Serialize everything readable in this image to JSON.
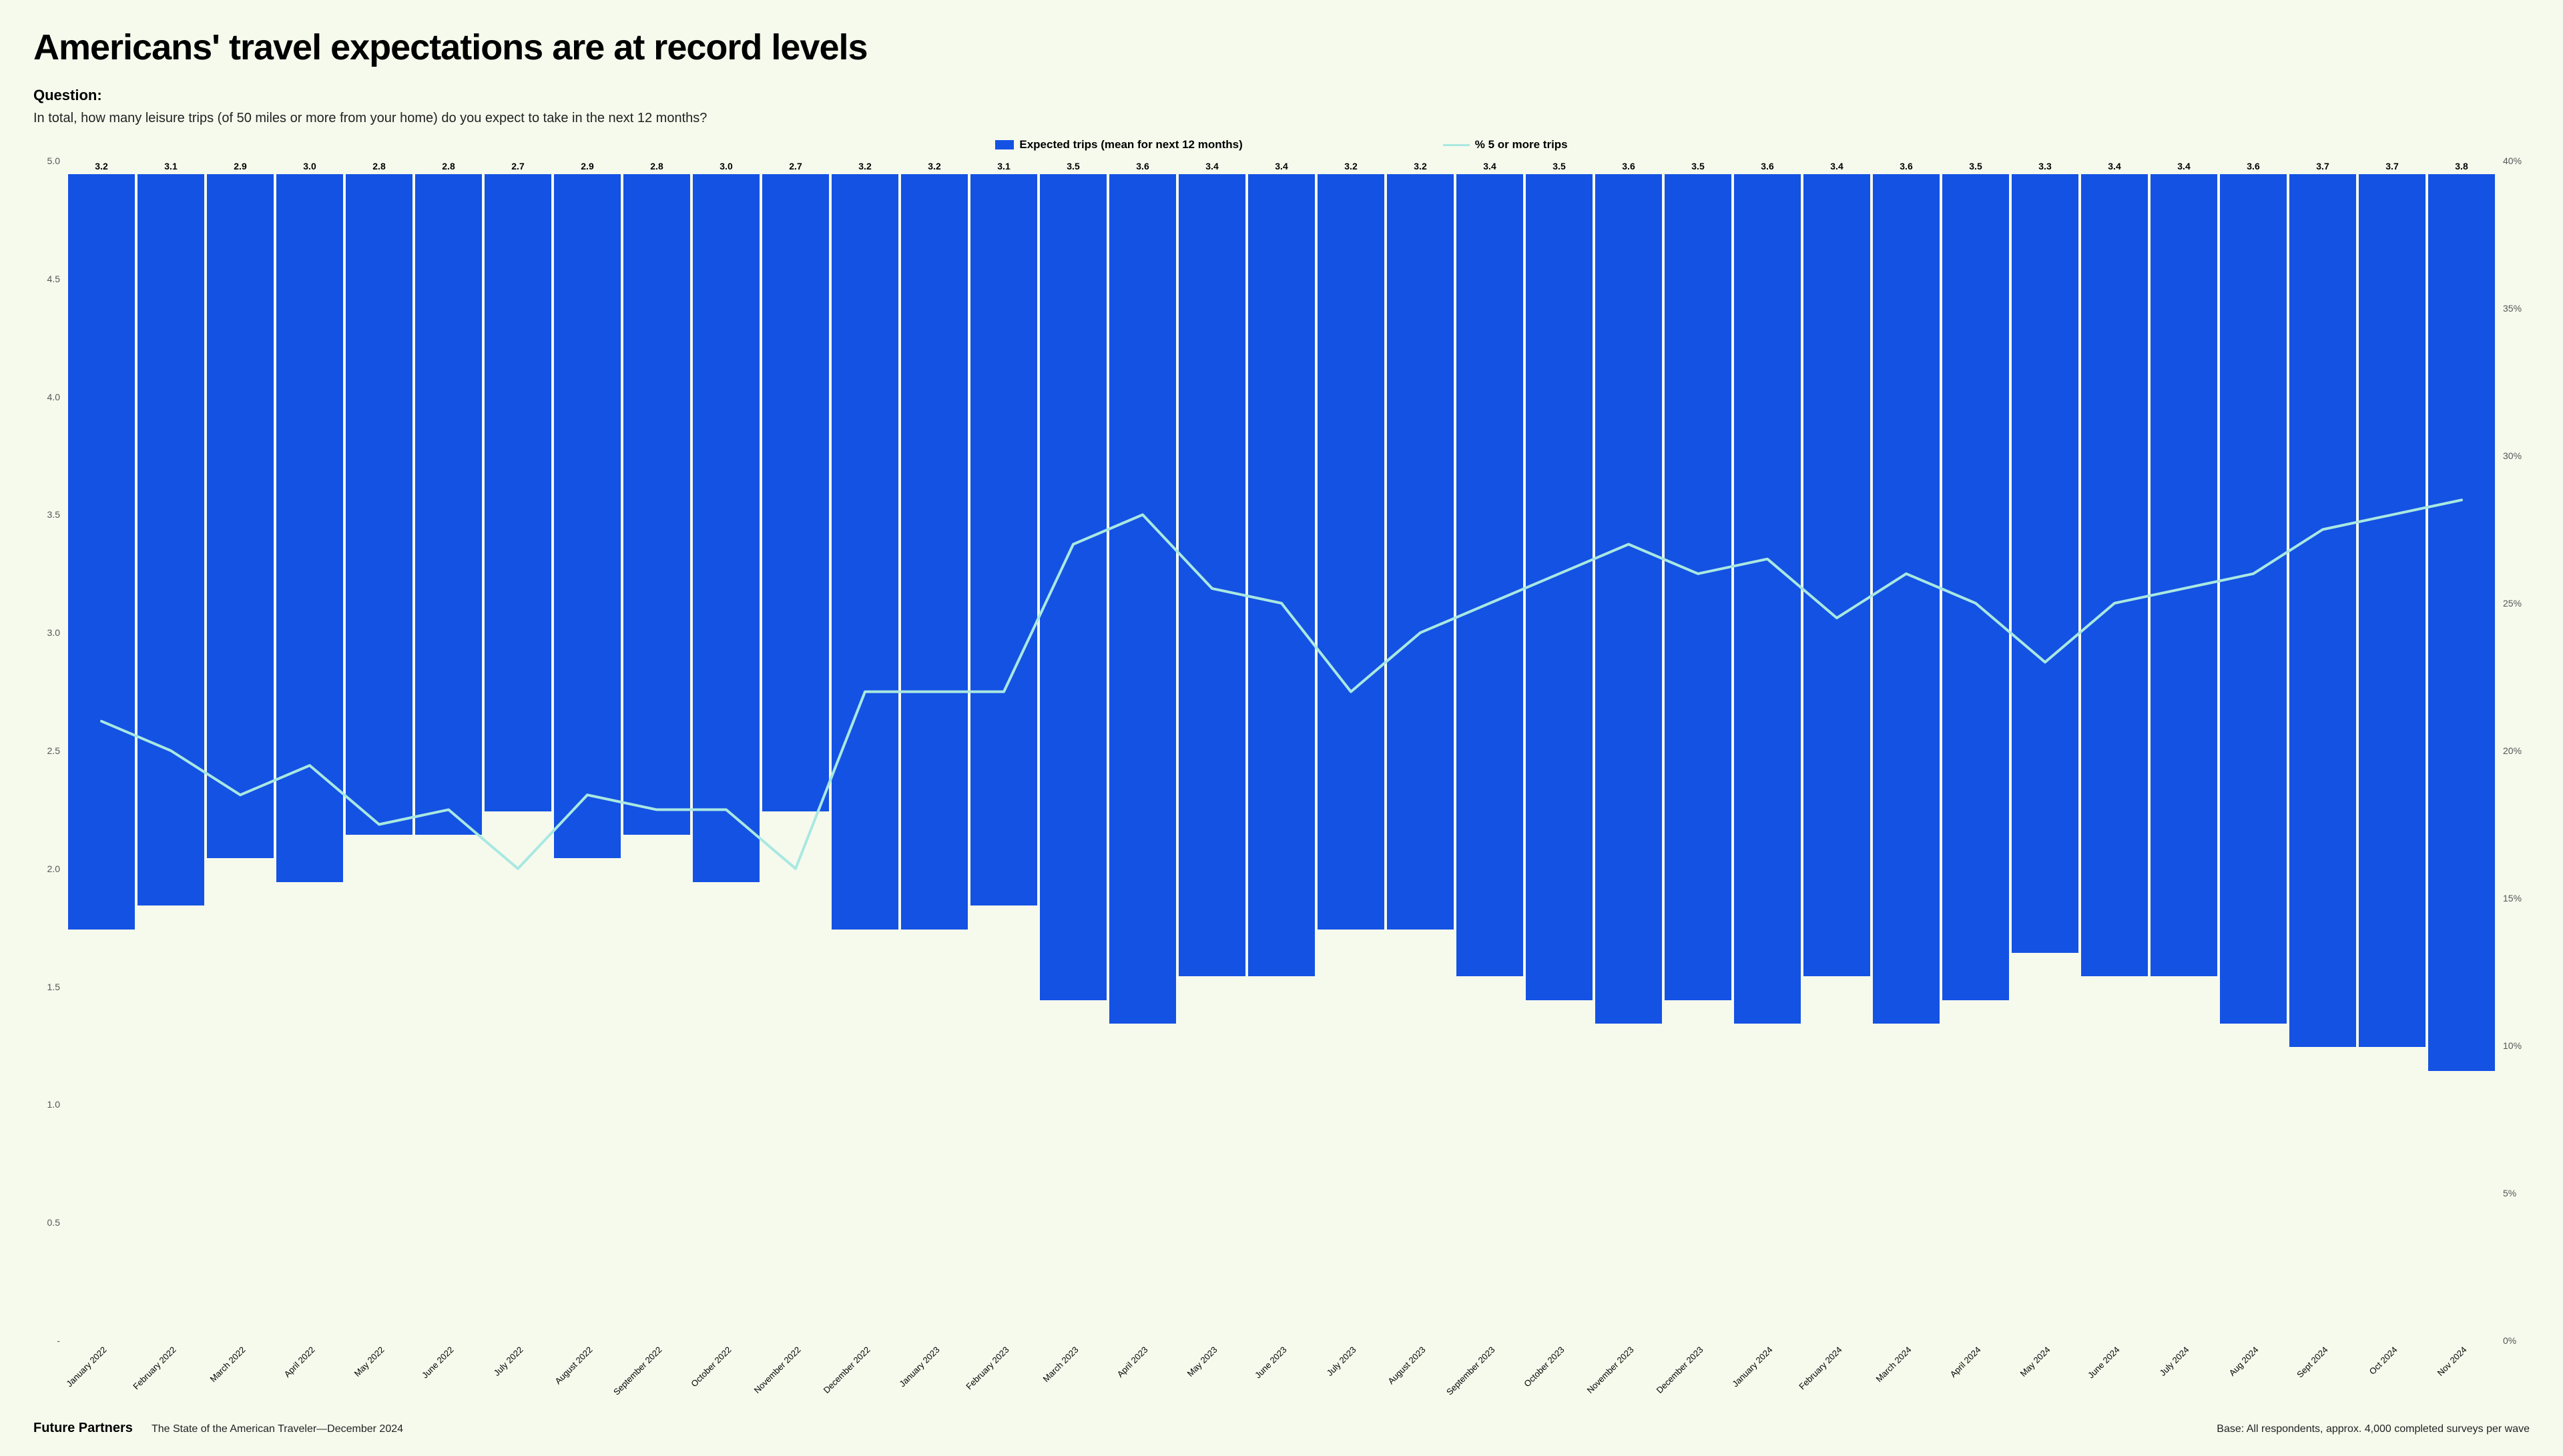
{
  "title": "Americans' travel expectations are at record levels",
  "question_label": "Question:",
  "question_text": "In total, how many leisure trips (of 50 miles or more from your home) do you expect to take in the next 12 months?",
  "legend": {
    "bars": "Expected trips (mean for next 12 months)",
    "line": "% 5 or more trips"
  },
  "footer": {
    "brand": "Future Partners",
    "left": "The State of the American Traveler—December 2024",
    "right": "Base: All respondents, approx. 4,000 completed surveys per wave"
  },
  "chart": {
    "type": "bar+line",
    "background_color": "#f6faed",
    "bar_color": "#1452e3",
    "line_color": "#a9e8e1",
    "line_width": 4,
    "grid": false,
    "left_axis": {
      "min": 0,
      "max": 5.0,
      "ticks": [
        "5.0",
        "4.5",
        "4.0",
        "3.5",
        "3.0",
        "2.5",
        "2.0",
        "1.5",
        "1.0",
        "0.5",
        "-"
      ],
      "tick_color": "#666",
      "tick_fontsize": 14
    },
    "right_axis": {
      "min": 0,
      "max": 40,
      "ticks": [
        "40%",
        "35%",
        "30%",
        "25%",
        "20%",
        "15%",
        "10%",
        "5%",
        "0%"
      ],
      "tick_color": "#666",
      "tick_fontsize": 14
    },
    "categories": [
      "January 2022",
      "February 2022",
      "March 2022",
      "April 2022",
      "May 2022",
      "June 2022",
      "July 2022",
      "August 2022",
      "September 2022",
      "October 2022",
      "November 2022",
      "December 2022",
      "January 2023",
      "February 2023",
      "March 2023",
      "April 2023",
      "May 2023",
      "June 2023",
      "July 2023",
      "August 2023",
      "September 2023",
      "October 2023",
      "November 2023",
      "December 2023",
      "January 2024",
      "February 2024",
      "March 2024",
      "April 2024",
      "May 2024",
      "June 2024",
      "July 2024",
      "Aug 2024",
      "Sept 2024",
      "Oct 2024",
      "Nov 2024"
    ],
    "bars": [
      3.2,
      3.1,
      2.9,
      3.0,
      2.8,
      2.8,
      2.7,
      2.9,
      2.8,
      3.0,
      2.7,
      3.2,
      3.2,
      3.1,
      3.5,
      3.6,
      3.4,
      3.4,
      3.2,
      3.2,
      3.4,
      3.5,
      3.6,
      3.5,
      3.6,
      3.4,
      3.6,
      3.5,
      3.3,
      3.4,
      3.4,
      3.6,
      3.7,
      3.7,
      3.8
    ],
    "bar_data_labels": [
      "3.2",
      "3.1",
      "2.9",
      "3.0",
      "2.8",
      "2.8",
      "2.7",
      "2.9",
      "2.8",
      "3.0",
      "2.7",
      "3.2",
      "3.2",
      "3.1",
      "3.5",
      "3.6",
      "3.4",
      "3.4",
      "3.2",
      "3.2",
      "3.4",
      "3.5",
      "3.6",
      "3.5",
      "3.6",
      "3.4",
      "3.6",
      "3.5",
      "3.3",
      "3.4",
      "3.4",
      "3.6",
      "3.7",
      "3.7",
      "3.8"
    ],
    "line_percent": [
      21,
      20,
      18.5,
      19.5,
      17.5,
      18,
      16,
      18.5,
      18,
      18,
      16,
      22,
      22,
      22,
      27,
      28,
      25.5,
      25,
      22,
      24,
      25,
      26,
      27,
      26,
      26.5,
      24.5,
      26,
      25,
      23,
      25,
      25.5,
      26,
      27.5,
      28,
      28.5
    ],
    "bar_label_fontsize": 14,
    "bar_label_weight": 600,
    "x_label_fontsize": 13,
    "x_label_rotation_deg": -45
  }
}
